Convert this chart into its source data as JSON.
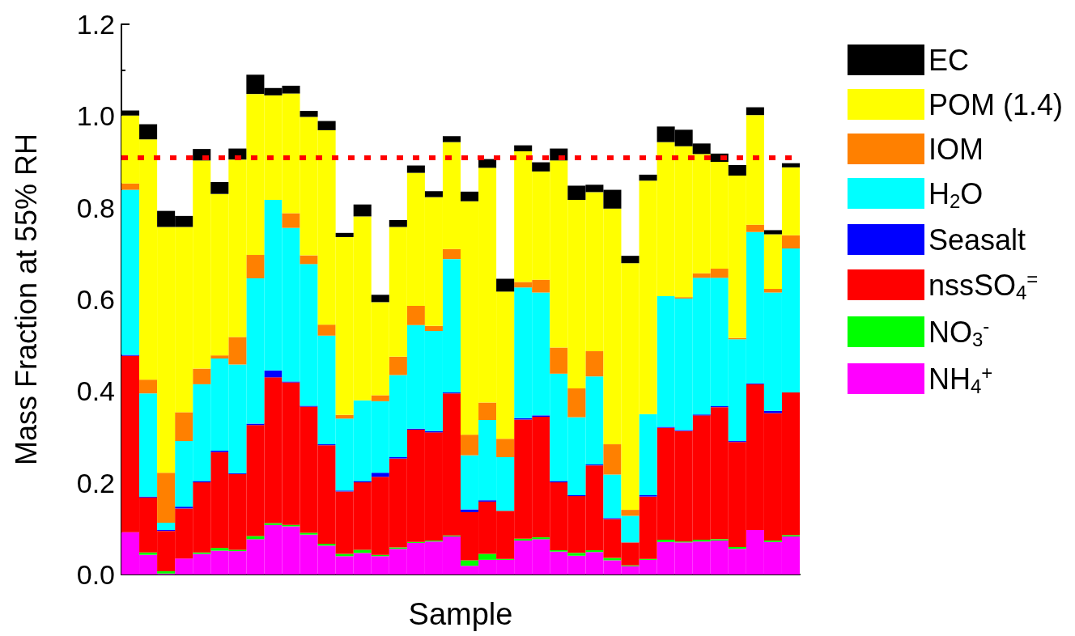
{
  "chart_data": {
    "type": "bar",
    "stacked": true,
    "xlabel": "Sample",
    "ylabel": "Mass Fraction at 55% RH",
    "ylim": [
      0,
      1.2
    ],
    "yticks": [
      {
        "value": 0,
        "label": "0.0"
      },
      {
        "value": 0.2,
        "label": "0.2"
      },
      {
        "value": 0.4,
        "label": "0.4"
      },
      {
        "value": 0.6,
        "label": "0.6"
      },
      {
        "value": 0.8,
        "label": "0.8"
      },
      {
        "value": 1.0,
        "label": "1.0"
      },
      {
        "value": 1.2,
        "label": "1.2"
      }
    ],
    "tick_labels": "y",
    "grid": false,
    "legend": "right",
    "categories": [
      null,
      null,
      null,
      null,
      null,
      null,
      null,
      null,
      null,
      null,
      null,
      null,
      null,
      null,
      null,
      null,
      null,
      null,
      null,
      null,
      null,
      null,
      null,
      null,
      null,
      null,
      null,
      null,
      null,
      null,
      null,
      null,
      null,
      null,
      null,
      null,
      null,
      null
    ],
    "ref_lines": [
      {
        "axis": "y",
        "value": 0.912,
        "color": "#ff0000",
        "line_style": "dotted"
      }
    ],
    "series": [
      {
        "name": "NH$_{4}$$^{+}$",
        "color": "#ff00ff",
        "values": [
          0.092,
          0.043,
          0.002,
          0.035,
          0.045,
          0.052,
          0.051,
          0.077,
          0.108,
          0.105,
          0.087,
          0.063,
          0.04,
          0.047,
          0.04,
          0.056,
          0.069,
          0.072,
          0.083,
          0.019,
          0.032,
          0.032,
          0.074,
          0.077,
          0.05,
          0.041,
          0.049,
          0.031,
          0.018,
          0.032,
          0.071,
          0.07,
          0.072,
          0.074,
          0.056,
          0.097,
          0.071,
          0.083
        ]
      },
      {
        "name": "NO$_{3}$$^{-}$",
        "color": "#00ff00",
        "values": [
          0.0,
          0.005,
          0.005,
          0.0,
          0.003,
          0.006,
          0.003,
          0.007,
          0.004,
          0.003,
          0.004,
          0.004,
          0.005,
          0.007,
          0.003,
          0.003,
          0.002,
          0.002,
          0.002,
          0.012,
          0.013,
          0.002,
          0.004,
          0.004,
          0.003,
          0.006,
          0.004,
          0.005,
          0.002,
          0.002,
          0.005,
          0.002,
          0.004,
          0.003,
          0.004,
          0.0,
          0.003,
          0.003
        ]
      },
      {
        "name": "nssSO$_{4}$$^{=}$",
        "color": "#ff0000",
        "values": [
          0.385,
          0.12,
          0.088,
          0.109,
          0.153,
          0.209,
          0.165,
          0.242,
          0.318,
          0.311,
          0.275,
          0.215,
          0.136,
          0.147,
          0.17,
          0.194,
          0.245,
          0.236,
          0.31,
          0.105,
          0.114,
          0.105,
          0.26,
          0.263,
          0.148,
          0.124,
          0.185,
          0.085,
          0.05,
          0.136,
          0.244,
          0.241,
          0.271,
          0.288,
          0.229,
          0.318,
          0.278,
          0.311
        ]
      },
      {
        "name": "Seasalt",
        "color": "#0000ff",
        "values": [
          0.002,
          0.002,
          0.002,
          0.004,
          0.003,
          0.003,
          0.002,
          0.003,
          0.015,
          0.002,
          0.002,
          0.002,
          0.002,
          0.003,
          0.009,
          0.003,
          0.002,
          0.003,
          0.002,
          0.006,
          0.003,
          0.0,
          0.003,
          0.003,
          0.003,
          0.002,
          0.002,
          0.002,
          0.0,
          0.003,
          0.002,
          0.002,
          0.002,
          0.002,
          0.002,
          0.002,
          0.005,
          0.0
        ]
      },
      {
        "name": "H$_{2}$O",
        "color": "#00ffff",
        "values": [
          0.36,
          0.225,
          0.016,
          0.143,
          0.211,
          0.201,
          0.237,
          0.317,
          0.372,
          0.335,
          0.309,
          0.237,
          0.157,
          0.176,
          0.156,
          0.179,
          0.226,
          0.218,
          0.291,
          0.118,
          0.175,
          0.117,
          0.285,
          0.268,
          0.234,
          0.17,
          0.192,
          0.095,
          0.058,
          0.177,
          0.285,
          0.287,
          0.298,
          0.28,
          0.222,
          0.33,
          0.258,
          0.314
        ]
      },
      {
        "name": "IOM",
        "color": "#ff8000",
        "values": [
          0.014,
          0.03,
          0.109,
          0.063,
          0.034,
          0.007,
          0.06,
          0.051,
          0.0,
          0.032,
          0.019,
          0.024,
          0.008,
          0.0,
          0.013,
          0.04,
          0.042,
          0.011,
          0.022,
          0.045,
          0.038,
          0.04,
          0.012,
          0.028,
          0.057,
          0.063,
          0.055,
          0.066,
          0.013,
          0.0,
          0.0,
          0.003,
          0.01,
          0.02,
          0.003,
          0.016,
          0.008,
          0.029
        ]
      },
      {
        "name": "POM (1.4)",
        "color": "#ffff00",
        "values": [
          0.148,
          0.524,
          0.536,
          0.404,
          0.454,
          0.352,
          0.387,
          0.351,
          0.228,
          0.261,
          0.302,
          0.424,
          0.388,
          0.401,
          0.203,
          0.283,
          0.29,
          0.281,
          0.233,
          0.509,
          0.512,
          0.321,
          0.285,
          0.236,
          0.408,
          0.411,
          0.347,
          0.514,
          0.538,
          0.509,
          0.336,
          0.329,
          0.26,
          0.233,
          0.354,
          0.239,
          0.119,
          0.148
        ]
      },
      {
        "name": "EC",
        "color": "#000000",
        "values": [
          0.011,
          0.033,
          0.035,
          0.024,
          0.025,
          0.026,
          0.024,
          0.042,
          0.016,
          0.017,
          0.013,
          0.02,
          0.009,
          0.026,
          0.016,
          0.015,
          0.016,
          0.013,
          0.013,
          0.021,
          0.019,
          0.028,
          0.013,
          0.02,
          0.026,
          0.031,
          0.016,
          0.041,
          0.016,
          0.013,
          0.034,
          0.036,
          0.023,
          0.018,
          0.023,
          0.017,
          0.009,
          0.009
        ]
      }
    ]
  }
}
